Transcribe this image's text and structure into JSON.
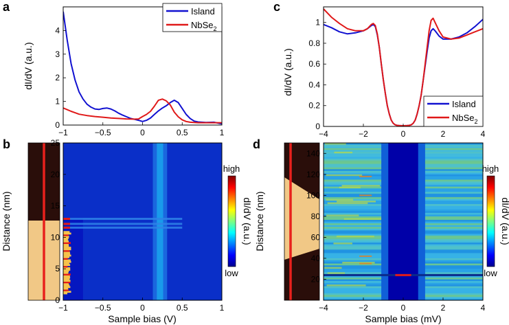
{
  "colors": {
    "island": "#1010d0",
    "nbse2": "#e01818",
    "map_bg": "#0a2fc8",
    "map_dip": "#1aa0ec",
    "map_outer": "#0000a8",
    "map_center": "#001a9a",
    "hot": "#e31a1a",
    "warm": "#f6c24b",
    "stm_dark": "#2a0e0a",
    "stm_light": "#f1c886",
    "cut_line": "#e8201c"
  },
  "chart_data": [
    {
      "id": "a",
      "panel_label": "a",
      "type": "line",
      "xlim": [
        -1,
        1
      ],
      "ylim": [
        0,
        5
      ],
      "xticks": [
        "-1",
        "-0.5",
        "0",
        "0.5",
        "1"
      ],
      "yticks": [
        "0",
        "1",
        "2",
        "3",
        "4"
      ],
      "xlabel": "",
      "ylabel": "dI/dV (a.u.)",
      "legend": {
        "position": "top-right",
        "entries": [
          "Island",
          "NbSe2"
        ]
      },
      "series": [
        {
          "name": "Island",
          "color": "#1010d0",
          "x": [
            -1,
            -0.95,
            -0.9,
            -0.85,
            -0.8,
            -0.75,
            -0.7,
            -0.65,
            -0.6,
            -0.55,
            -0.5,
            -0.45,
            -0.4,
            -0.35,
            -0.3,
            -0.25,
            -0.2,
            -0.15,
            -0.1,
            -0.05,
            0,
            0.05,
            0.1,
            0.15,
            0.2,
            0.25,
            0.3,
            0.35,
            0.4,
            0.45,
            0.5,
            0.55,
            0.6,
            0.65,
            0.7,
            0.8,
            0.9,
            1.0
          ],
          "y": [
            4.8,
            3.6,
            2.6,
            1.9,
            1.4,
            1.1,
            0.88,
            0.76,
            0.68,
            0.66,
            0.7,
            0.72,
            0.68,
            0.6,
            0.5,
            0.42,
            0.35,
            0.28,
            0.24,
            0.2,
            0.15,
            0.2,
            0.3,
            0.45,
            0.6,
            0.72,
            0.82,
            0.95,
            1.05,
            0.95,
            0.7,
            0.45,
            0.28,
            0.17,
            0.13,
            0.11,
            0.12,
            0.05
          ]
        },
        {
          "name": "NbSe2",
          "color": "#e01818",
          "x": [
            -1,
            -0.95,
            -0.9,
            -0.85,
            -0.8,
            -0.7,
            -0.6,
            -0.5,
            -0.4,
            -0.3,
            -0.2,
            -0.1,
            -0.05,
            0,
            0.05,
            0.1,
            0.15,
            0.2,
            0.25,
            0.3,
            0.35,
            0.4,
            0.45,
            0.5,
            0.55,
            0.6,
            0.7,
            0.8,
            0.9,
            1.0
          ],
          "y": [
            0.72,
            0.65,
            0.58,
            0.52,
            0.46,
            0.4,
            0.36,
            0.33,
            0.3,
            0.28,
            0.26,
            0.25,
            0.26,
            0.36,
            0.45,
            0.58,
            0.8,
            1.05,
            1.1,
            1.02,
            0.85,
            0.55,
            0.35,
            0.22,
            0.15,
            0.12,
            0.1,
            0.1,
            0.1,
            0.1
          ]
        }
      ]
    },
    {
      "id": "c",
      "panel_label": "c",
      "type": "line",
      "xlim": [
        -4,
        4
      ],
      "ylim": [
        0,
        1.15
      ],
      "xticks": [
        "-4",
        "-2",
        "0",
        "2",
        "4"
      ],
      "yticks": [
        "0",
        "0.2",
        "0.4",
        "0.6",
        "0.8",
        "1"
      ],
      "xlabel": "",
      "ylabel": "dI/dV (a.u.)",
      "legend": {
        "position": "bottom-right",
        "entries": [
          "Island",
          "NbSe2"
        ]
      },
      "series": [
        {
          "name": "Island",
          "color": "#1010d0",
          "x": [
            -4,
            -3.6,
            -3.2,
            -2.8,
            -2.4,
            -2.0,
            -1.8,
            -1.6,
            -1.5,
            -1.4,
            -1.3,
            -1.2,
            -1.1,
            -1.0,
            -0.9,
            -0.8,
            -0.7,
            -0.6,
            -0.5,
            -0.4,
            -0.3,
            -0.2,
            -0.1,
            0,
            0.1,
            0.2,
            0.3,
            0.4,
            0.5,
            0.6,
            0.7,
            0.8,
            0.9,
            1.0,
            1.1,
            1.2,
            1.3,
            1.4,
            1.5,
            1.6,
            1.8,
            2.0,
            2.4,
            2.8,
            3.2,
            3.6,
            4.0
          ],
          "y": [
            0.98,
            0.95,
            0.91,
            0.89,
            0.9,
            0.92,
            0.94,
            0.97,
            0.98,
            0.96,
            0.88,
            0.76,
            0.6,
            0.45,
            0.32,
            0.2,
            0.12,
            0.06,
            0.03,
            0.015,
            0.01,
            0.008,
            0.007,
            0.006,
            0.007,
            0.008,
            0.01,
            0.015,
            0.03,
            0.06,
            0.12,
            0.2,
            0.3,
            0.44,
            0.58,
            0.72,
            0.85,
            0.92,
            0.94,
            0.92,
            0.87,
            0.84,
            0.84,
            0.86,
            0.9,
            0.96,
            1.03
          ]
        },
        {
          "name": "NbSe2",
          "color": "#e01818",
          "x": [
            -4,
            -3.6,
            -3.2,
            -2.8,
            -2.4,
            -2.0,
            -1.8,
            -1.6,
            -1.5,
            -1.4,
            -1.3,
            -1.2,
            -1.1,
            -1.0,
            -0.9,
            -0.8,
            -0.7,
            -0.6,
            -0.5,
            -0.4,
            -0.3,
            -0.2,
            -0.1,
            0,
            0.1,
            0.2,
            0.3,
            0.4,
            0.5,
            0.6,
            0.7,
            0.8,
            0.9,
            1.0,
            1.1,
            1.2,
            1.3,
            1.4,
            1.5,
            1.6,
            1.8,
            2.0,
            2.4,
            2.8,
            3.2,
            3.6,
            4.0
          ],
          "y": [
            1.13,
            1.05,
            0.99,
            0.94,
            0.92,
            0.92,
            0.94,
            0.98,
            0.99,
            0.97,
            0.89,
            0.76,
            0.6,
            0.45,
            0.32,
            0.2,
            0.12,
            0.06,
            0.03,
            0.015,
            0.01,
            0.008,
            0.007,
            0.006,
            0.007,
            0.008,
            0.01,
            0.015,
            0.03,
            0.06,
            0.12,
            0.2,
            0.3,
            0.44,
            0.6,
            0.76,
            0.92,
            1.02,
            1.04,
            1.0,
            0.92,
            0.86,
            0.84,
            0.85,
            0.88,
            0.91,
            0.94
          ]
        }
      ]
    },
    {
      "id": "b",
      "panel_label": "b",
      "type": "heatmap",
      "xlim": [
        -1,
        1
      ],
      "ylim": [
        0,
        25
      ],
      "xticks": [
        "-1",
        "-0.5",
        "0",
        "0.5",
        "1"
      ],
      "yticks": [
        "0",
        "5",
        "10",
        "15",
        "20",
        "25"
      ],
      "xlabel": "Sample bias (V)",
      "ylabel": "Distance (nm)",
      "colorbar": {
        "label": "dI/dV (a.u.)",
        "high": "high",
        "low": "low"
      },
      "island_edge_nm": 13.0,
      "dip_center_bias": 0.22,
      "bright_rows_nm": [
        12.9,
        12.1,
        11.5
      ],
      "rows": 50,
      "colors": [
        "#0000b8",
        "#0a2fc8",
        "#1aa0ec",
        "#e31a1a",
        "#f6c24b"
      ]
    },
    {
      "id": "d",
      "panel_label": "d",
      "type": "heatmap",
      "xlim": [
        -4,
        4
      ],
      "ylim": [
        0,
        150
      ],
      "xticks": [
        "-4",
        "-2",
        "0",
        "2",
        "4"
      ],
      "yticks": [
        "20",
        "40",
        "60",
        "80",
        "100",
        "120",
        "140"
      ],
      "xlabel": "Sample bias (mV)",
      "ylabel": "Distance (nm)",
      "colorbar": {
        "label": "dI/dV (a.u.)",
        "high": "high",
        "low": "low"
      },
      "gap_center_bias": 0.0,
      "gap_half_width_bias": 1.1,
      "island_range_nm": [
        38,
        118
      ],
      "bright_row_nm": 24,
      "rows": 90,
      "colors": [
        "#0000a8",
        "#1aa0ec",
        "#3ab4e6",
        "#9ed45a",
        "#e31a1a"
      ]
    }
  ]
}
